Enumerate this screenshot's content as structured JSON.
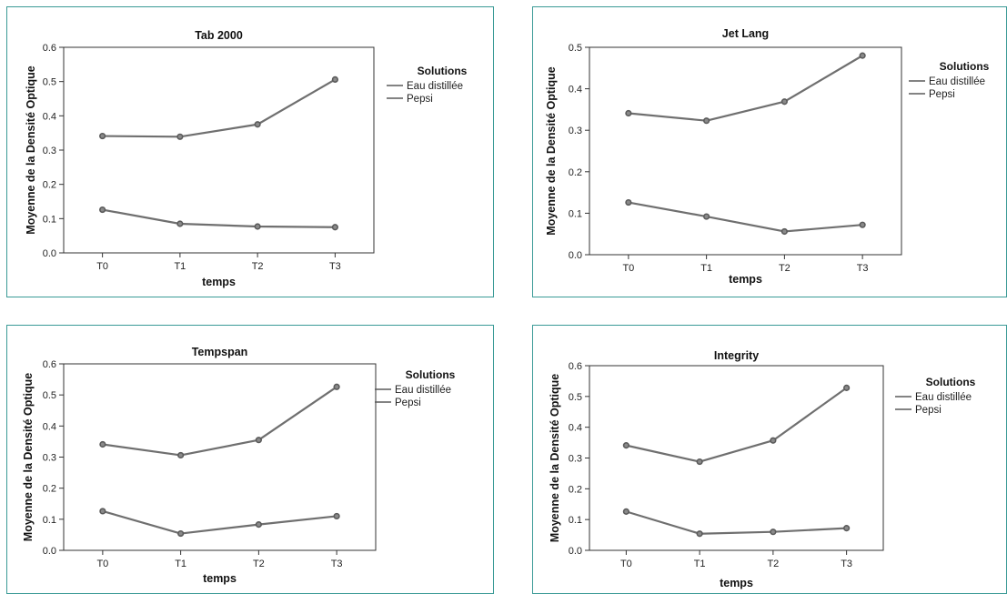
{
  "chart_data": [
    {
      "type": "line",
      "title": "Tab 2000",
      "categories": [
        "T0",
        "T1",
        "T2",
        "T3"
      ],
      "xlabel": "temps",
      "ylabel": "Moyenne de la Densité Optique",
      "ylim": [
        0,
        0.6
      ],
      "yticks": [
        "0.0",
        "0.1",
        "0.2",
        "0.3",
        "0.4",
        "0.5",
        "0.6"
      ],
      "legend_title": "Solutions",
      "legend_position": "right",
      "series": [
        {
          "name": "Eau distillée",
          "values": [
            0.126,
            0.085,
            0.077,
            0.075
          ]
        },
        {
          "name": "Pepsi",
          "values": [
            0.341,
            0.339,
            0.375,
            0.506
          ]
        }
      ]
    },
    {
      "type": "line",
      "title": "Jet Lang",
      "categories": [
        "T0",
        "T1",
        "T2",
        "T3"
      ],
      "xlabel": "temps",
      "ylabel": "Moyenne de la Densité Optique",
      "ylim": [
        0,
        0.5
      ],
      "yticks": [
        "0.0",
        "0.1",
        "0.2",
        "0.3",
        "0.4",
        "0.5"
      ],
      "legend_title": "Solutions",
      "legend_position": "right",
      "series": [
        {
          "name": "Eau distillée",
          "values": [
            0.126,
            0.092,
            0.056,
            0.072
          ]
        },
        {
          "name": "Pepsi",
          "values": [
            0.341,
            0.323,
            0.369,
            0.48
          ]
        }
      ]
    },
    {
      "type": "line",
      "title": "Tempspan",
      "categories": [
        "T0",
        "T1",
        "T2",
        "T3"
      ],
      "xlabel": "temps",
      "ylabel": "Moyenne de la Densité Optique",
      "ylim": [
        0,
        0.6
      ],
      "yticks": [
        "0.0",
        "0.1",
        "0.2",
        "0.3",
        "0.4",
        "0.5",
        "0.6"
      ],
      "legend_title": "Solutions",
      "legend_position": "right",
      "series": [
        {
          "name": "Eau distillée",
          "values": [
            0.126,
            0.054,
            0.083,
            0.11
          ]
        },
        {
          "name": "Pepsi",
          "values": [
            0.341,
            0.306,
            0.355,
            0.526
          ]
        }
      ]
    },
    {
      "type": "line",
      "title": "Integrity",
      "categories": [
        "T0",
        "T1",
        "T2",
        "T3"
      ],
      "xlabel": "temps",
      "ylabel": "Moyenne de la Densité Optique",
      "ylim": [
        0,
        0.6
      ],
      "yticks": [
        "0.0",
        "0.1",
        "0.2",
        "0.3",
        "0.4",
        "0.5",
        "0.6"
      ],
      "legend_title": "Solutions",
      "legend_position": "right",
      "series": [
        {
          "name": "Eau distillée",
          "values": [
            0.126,
            0.054,
            0.06,
            0.072
          ]
        },
        {
          "name": "Pepsi",
          "values": [
            0.341,
            0.288,
            0.357,
            0.528
          ]
        }
      ]
    }
  ]
}
